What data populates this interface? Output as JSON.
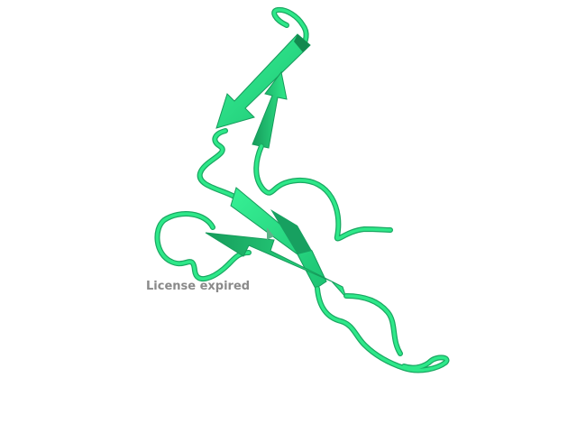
{
  "watermark": {
    "text": "License expired"
  },
  "render": {
    "background": "#ffffff",
    "ribbon_color": "#2ee889",
    "ribbon_shadow": "#1aa862",
    "ribbon_dark": "#0f6e3f",
    "watermark_color": "#8a8a8a"
  }
}
